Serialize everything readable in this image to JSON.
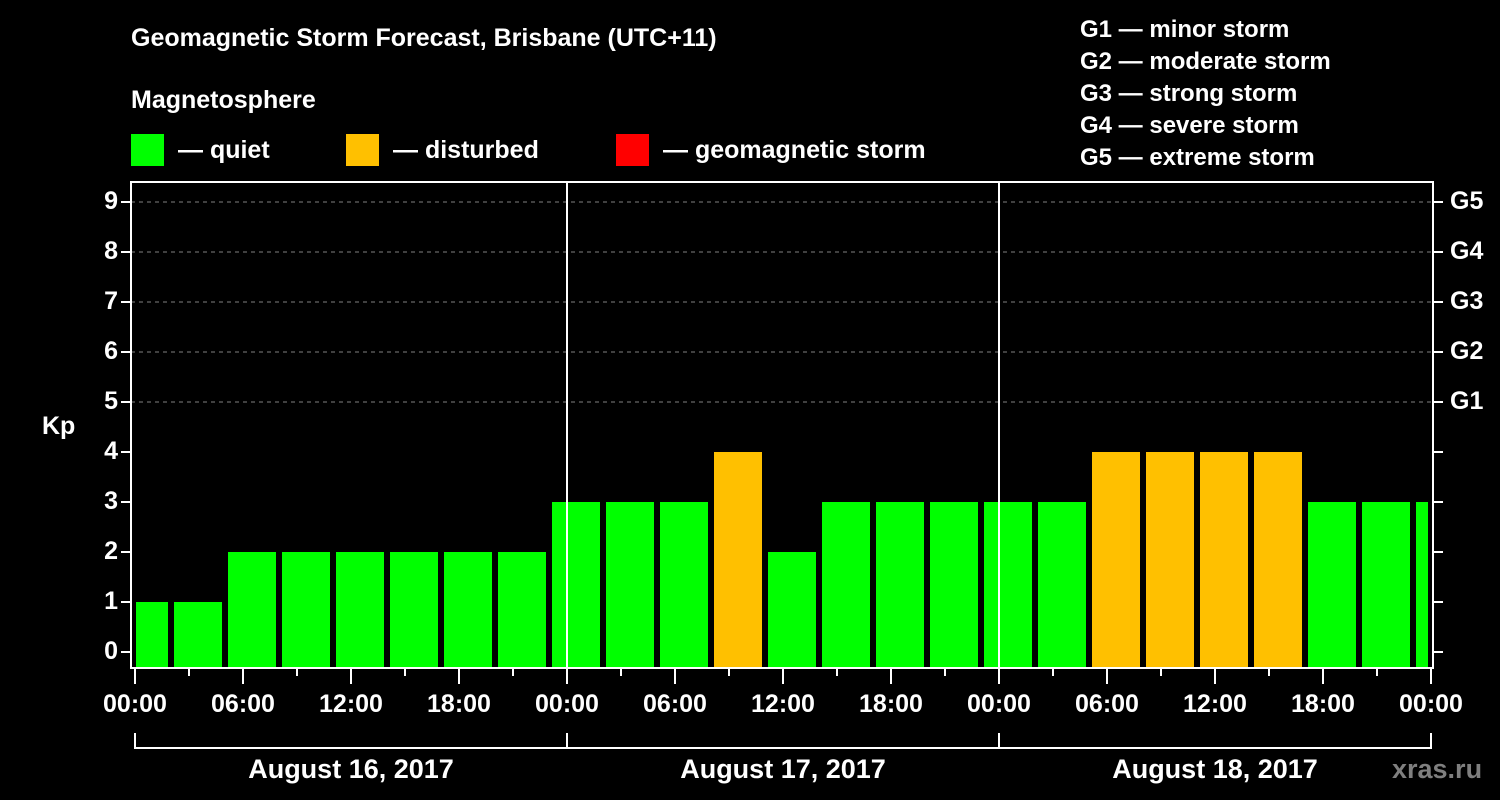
{
  "header": {
    "title": "Geomagnetic Storm Forecast, Brisbane (UTC+11)",
    "subtitle": "Magnetosphere"
  },
  "legend": [
    {
      "label": "— quiet",
      "color": "#00ff00"
    },
    {
      "label": "— disturbed",
      "color": "#ffc000"
    },
    {
      "label": "— geomagnetic storm",
      "color": "#ff0000"
    }
  ],
  "g_legend": [
    "G1 — minor storm",
    "G2 — moderate storm",
    "G3 — strong storm",
    "G4 — severe storm",
    "G5 — extreme storm"
  ],
  "axis": {
    "ylabel": "Kp",
    "y_ticks": [
      "0",
      "1",
      "2",
      "3",
      "4",
      "5",
      "6",
      "7",
      "8",
      "9"
    ],
    "g_ticks": [
      {
        "label": "G1",
        "kp": 5
      },
      {
        "label": "G2",
        "kp": 6
      },
      {
        "label": "G3",
        "kp": 7
      },
      {
        "label": "G4",
        "kp": 8
      },
      {
        "label": "G5",
        "kp": 9
      }
    ],
    "x_ticks": [
      "00:00",
      "06:00",
      "12:00",
      "18:00",
      "00:00",
      "06:00",
      "12:00",
      "18:00",
      "00:00",
      "06:00",
      "12:00",
      "18:00",
      "00:00"
    ],
    "dates": [
      "August 16, 2017",
      "August 17, 2017",
      "August 18, 2017"
    ]
  },
  "watermark": "xras.ru",
  "colors": {
    "quiet": "#00ff00",
    "disturbed": "#ffc000",
    "storm": "#ff0000",
    "background": "#000000",
    "grid": "#808080"
  },
  "chart_data": {
    "type": "bar",
    "title": "Geomagnetic Storm Forecast, Brisbane (UTC+11)",
    "xlabel": "",
    "ylabel": "Kp",
    "ylim": [
      0,
      9
    ],
    "grid": true,
    "legend_position": "top",
    "categories": [
      "Aug 16 00:00",
      "Aug 16 03:00",
      "Aug 16 06:00",
      "Aug 16 09:00",
      "Aug 16 12:00",
      "Aug 16 15:00",
      "Aug 16 18:00",
      "Aug 16 21:00",
      "Aug 17 00:00",
      "Aug 17 03:00",
      "Aug 17 06:00",
      "Aug 17 09:00",
      "Aug 17 12:00",
      "Aug 17 15:00",
      "Aug 17 18:00",
      "Aug 17 21:00",
      "Aug 18 00:00",
      "Aug 18 03:00",
      "Aug 18 06:00",
      "Aug 18 09:00",
      "Aug 18 12:00",
      "Aug 18 15:00",
      "Aug 18 18:00",
      "Aug 18 21:00",
      "Aug 19 00:00"
    ],
    "values": [
      1,
      1,
      2,
      2,
      2,
      2,
      2,
      2,
      3,
      3,
      3,
      4,
      2,
      3,
      3,
      3,
      3,
      3,
      4,
      4,
      4,
      4,
      3,
      3,
      3
    ],
    "status": [
      "quiet",
      "quiet",
      "quiet",
      "quiet",
      "quiet",
      "quiet",
      "quiet",
      "quiet",
      "quiet",
      "quiet",
      "quiet",
      "disturbed",
      "quiet",
      "quiet",
      "quiet",
      "quiet",
      "quiet",
      "quiet",
      "disturbed",
      "disturbed",
      "disturbed",
      "disturbed",
      "quiet",
      "quiet",
      "quiet"
    ],
    "right_axis": {
      "G1": 5,
      "G2": 6,
      "G3": 7,
      "G4": 8,
      "G5": 9
    }
  }
}
